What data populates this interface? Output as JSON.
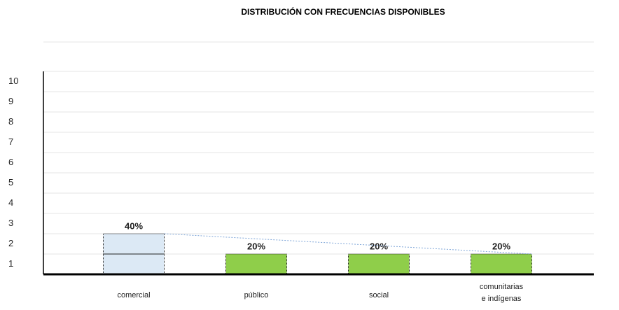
{
  "chart_data": {
    "type": "bar",
    "title": "DISTRIBUCIÓN CON FRECUENCIAS DISPONIBLES",
    "categories": [
      "comercial",
      "público",
      "social",
      "comunitarias\ne indígenas"
    ],
    "values": [
      2,
      1,
      1,
      1
    ],
    "value_labels": [
      "40%",
      "20%",
      "20%",
      "20%"
    ],
    "colors": [
      "#dce9f5",
      "#8fce4a",
      "#8fce4a",
      "#8fce4a"
    ],
    "ylim": [
      0,
      10
    ],
    "yticks": [
      1,
      2,
      3,
      4,
      5,
      6,
      7,
      8,
      9,
      10
    ],
    "grid": true
  }
}
